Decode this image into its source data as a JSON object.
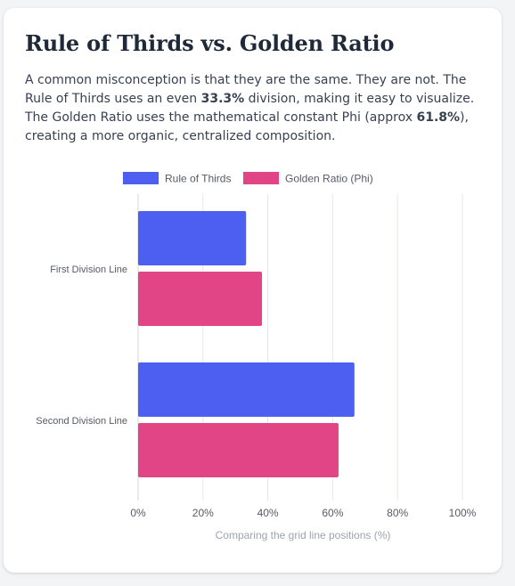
{
  "card": {
    "title": "Rule of Thirds vs. Golden Ratio",
    "description": {
      "part1": "A common misconception is that they are the same. They are not. The Rule of Thirds uses an even ",
      "bold1": "33.3%",
      "part2": " division, making it easy to visualize. The Golden Ratio uses the mathematical constant Phi (approx ",
      "bold2": "61.8%",
      "part3": "), creating a more organic, centralized composition."
    }
  },
  "colors": {
    "rule_of_thirds": "#4c5ff0",
    "golden_ratio": "#e24585",
    "grid": "#e5e7eb",
    "axis_text": "#555b66",
    "caption_text": "#9ca3af"
  },
  "chart_data": {
    "type": "bar",
    "orientation": "horizontal",
    "categories": [
      "First Division Line",
      "Second Division Line"
    ],
    "series": [
      {
        "name": "Rule of Thirds",
        "values": [
          33.3,
          66.7
        ]
      },
      {
        "name": "Golden Ratio (Phi)",
        "values": [
          38.2,
          61.8
        ]
      }
    ],
    "xlim": [
      0,
      100
    ],
    "xticks": [
      "0%",
      "20%",
      "40%",
      "60%",
      "80%",
      "100%"
    ],
    "xlabel": "Comparing the grid line positions (%)",
    "ylabel": "",
    "grid": true,
    "legend_position": "top"
  }
}
